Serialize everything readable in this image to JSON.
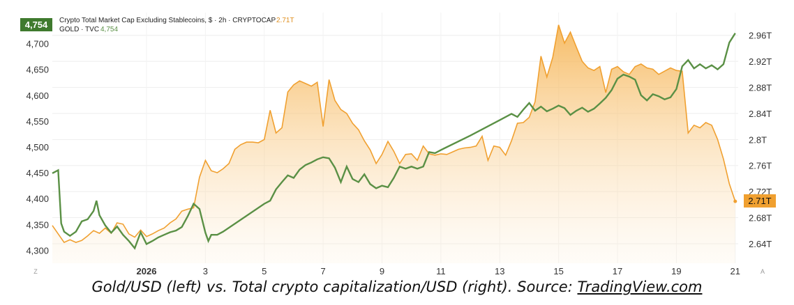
{
  "chart_data": {
    "type": "line",
    "legend": {
      "crypto_label": "Crypto Total Market Cap Excluding Stablecoins, $ · 2h · CRYPTOCAP",
      "crypto_value": "2.71T",
      "gold_label": "GOLD · TVC",
      "gold_value": "4,754"
    },
    "gold_badge": "4,754",
    "crypto_badge": "2.71T",
    "x_ticks": [
      "2026",
      "3",
      "5",
      "7",
      "9",
      "11",
      "13",
      "15",
      "17",
      "19",
      "21"
    ],
    "x_tick_pos": [
      4,
      6,
      8,
      10,
      12,
      14,
      16,
      18,
      20,
      22,
      24
    ],
    "left_axis": {
      "ticks": [
        "4,300",
        "4,350",
        "4,400",
        "4,450",
        "4,500",
        "4,550",
        "4,600",
        "4,650",
        "4,700"
      ],
      "tick_values": [
        4300,
        4350,
        4400,
        4450,
        4500,
        4550,
        4600,
        4650,
        4700
      ],
      "ylim": [
        4275,
        4760
      ]
    },
    "right_axis": {
      "ticks": [
        "2.64T",
        "2.68T",
        "2.72T",
        "2.76T",
        "2.8T",
        "2.84T",
        "2.88T",
        "2.92T",
        "2.96T"
      ],
      "tick_values": [
        2.64,
        2.68,
        2.72,
        2.76,
        2.8,
        2.84,
        2.88,
        2.92,
        2.96
      ],
      "ylim": [
        2.61,
        2.995
      ]
    },
    "xlim": [
      0.8,
      24.1
    ],
    "series": [
      {
        "name": "Crypto Total Market Cap Excluding Stablecoins",
        "axis": "right",
        "color": "#f0a030",
        "points": [
          [
            0.8,
            2.668
          ],
          [
            1.0,
            2.655
          ],
          [
            1.2,
            2.642
          ],
          [
            1.4,
            2.646
          ],
          [
            1.6,
            2.642
          ],
          [
            1.8,
            2.645
          ],
          [
            2.0,
            2.652
          ],
          [
            2.2,
            2.66
          ],
          [
            2.4,
            2.656
          ],
          [
            2.6,
            2.664
          ],
          [
            2.8,
            2.656
          ],
          [
            3.0,
            2.672
          ],
          [
            3.2,
            2.67
          ],
          [
            3.4,
            2.655
          ],
          [
            3.6,
            2.65
          ],
          [
            3.8,
            2.661
          ],
          [
            4.0,
            2.651
          ],
          [
            4.2,
            2.655
          ],
          [
            4.4,
            2.66
          ],
          [
            4.6,
            2.664
          ],
          [
            4.8,
            2.672
          ],
          [
            5.0,
            2.678
          ],
          [
            5.2,
            2.69
          ],
          [
            5.4,
            2.693
          ],
          [
            5.6,
            2.695
          ],
          [
            5.8,
            2.742
          ],
          [
            6.0,
            2.768
          ],
          [
            6.2,
            2.752
          ],
          [
            6.4,
            2.749
          ],
          [
            6.6,
            2.755
          ],
          [
            6.8,
            2.763
          ],
          [
            7.0,
            2.785
          ],
          [
            7.2,
            2.792
          ],
          [
            7.4,
            2.796
          ],
          [
            7.6,
            2.796
          ],
          [
            7.8,
            2.795
          ],
          [
            8.0,
            2.8
          ],
          [
            8.2,
            2.845
          ],
          [
            8.4,
            2.81
          ],
          [
            8.6,
            2.818
          ],
          [
            8.8,
            2.873
          ],
          [
            9.0,
            2.884
          ],
          [
            9.2,
            2.89
          ],
          [
            9.4,
            2.886
          ],
          [
            9.6,
            2.882
          ],
          [
            9.8,
            2.888
          ],
          [
            10.0,
            2.82
          ],
          [
            10.2,
            2.892
          ],
          [
            10.4,
            2.86
          ],
          [
            10.6,
            2.846
          ],
          [
            10.8,
            2.84
          ],
          [
            11.0,
            2.825
          ],
          [
            11.2,
            2.815
          ],
          [
            11.4,
            2.798
          ],
          [
            11.6,
            2.784
          ],
          [
            11.8,
            2.763
          ],
          [
            12.0,
            2.777
          ],
          [
            12.2,
            2.797
          ],
          [
            12.4,
            2.782
          ],
          [
            12.6,
            2.763
          ],
          [
            12.8,
            2.777
          ],
          [
            13.0,
            2.778
          ],
          [
            13.2,
            2.768
          ],
          [
            13.4,
            2.79
          ],
          [
            13.6,
            2.778
          ],
          [
            13.8,
            2.776
          ],
          [
            14.0,
            2.778
          ],
          [
            14.2,
            2.777
          ],
          [
            14.4,
            2.781
          ],
          [
            14.6,
            2.785
          ],
          [
            14.8,
            2.787
          ],
          [
            15.0,
            2.788
          ],
          [
            15.2,
            2.79
          ],
          [
            15.4,
            2.805
          ],
          [
            15.6,
            2.768
          ],
          [
            15.8,
            2.79
          ],
          [
            16.0,
            2.788
          ],
          [
            16.2,
            2.776
          ],
          [
            16.4,
            2.798
          ],
          [
            16.6,
            2.825
          ],
          [
            16.8,
            2.826
          ],
          [
            17.0,
            2.834
          ],
          [
            17.2,
            2.858
          ],
          [
            17.4,
            2.928
          ],
          [
            17.6,
            2.896
          ],
          [
            17.8,
            2.926
          ],
          [
            18.0,
            2.976
          ],
          [
            18.2,
            2.948
          ],
          [
            18.4,
            2.965
          ],
          [
            18.6,
            2.942
          ],
          [
            18.8,
            2.92
          ],
          [
            19.0,
            2.91
          ],
          [
            19.2,
            2.906
          ],
          [
            19.4,
            2.912
          ],
          [
            19.6,
            2.872
          ],
          [
            19.8,
            2.908
          ],
          [
            20.0,
            2.912
          ],
          [
            20.2,
            2.904
          ],
          [
            20.4,
            2.9
          ],
          [
            20.6,
            2.912
          ],
          [
            20.8,
            2.916
          ],
          [
            21.0,
            2.91
          ],
          [
            21.2,
            2.908
          ],
          [
            21.4,
            2.9
          ],
          [
            21.6,
            2.905
          ],
          [
            21.8,
            2.91
          ],
          [
            22.0,
            2.906
          ],
          [
            22.2,
            2.905
          ],
          [
            22.4,
            2.81
          ],
          [
            22.6,
            2.822
          ],
          [
            22.8,
            2.818
          ],
          [
            23.0,
            2.826
          ],
          [
            23.2,
            2.822
          ],
          [
            23.4,
            2.8
          ],
          [
            23.6,
            2.77
          ],
          [
            23.8,
            2.732
          ],
          [
            24.0,
            2.705
          ]
        ]
      },
      {
        "name": "GOLD",
        "axis": "left",
        "color": "#5a9045",
        "points": [
          [
            0.8,
            4449
          ],
          [
            1.0,
            4455
          ],
          [
            1.1,
            4352
          ],
          [
            1.2,
            4336
          ],
          [
            1.4,
            4328
          ],
          [
            1.6,
            4336
          ],
          [
            1.8,
            4356
          ],
          [
            2.0,
            4360
          ],
          [
            2.2,
            4376
          ],
          [
            2.3,
            4396
          ],
          [
            2.4,
            4368
          ],
          [
            2.6,
            4348
          ],
          [
            2.8,
            4334
          ],
          [
            3.0,
            4346
          ],
          [
            3.2,
            4330
          ],
          [
            3.4,
            4318
          ],
          [
            3.6,
            4304
          ],
          [
            3.8,
            4335
          ],
          [
            4.0,
            4312
          ],
          [
            4.2,
            4318
          ],
          [
            4.4,
            4325
          ],
          [
            4.6,
            4330
          ],
          [
            4.8,
            4335
          ],
          [
            5.0,
            4338
          ],
          [
            5.2,
            4345
          ],
          [
            5.4,
            4366
          ],
          [
            5.6,
            4390
          ],
          [
            5.8,
            4380
          ],
          [
            6.0,
            4334
          ],
          [
            6.1,
            4318
          ],
          [
            6.2,
            4330
          ],
          [
            6.4,
            4330
          ],
          [
            6.6,
            4336
          ],
          [
            8.0,
            4390
          ],
          [
            8.2,
            4396
          ],
          [
            8.4,
            4418
          ],
          [
            8.6,
            4432
          ],
          [
            8.8,
            4445
          ],
          [
            9.0,
            4440
          ],
          [
            9.2,
            4456
          ],
          [
            9.4,
            4465
          ],
          [
            9.6,
            4470
          ],
          [
            9.8,
            4476
          ],
          [
            10.0,
            4480
          ],
          [
            10.2,
            4478
          ],
          [
            10.4,
            4460
          ],
          [
            10.6,
            4432
          ],
          [
            10.8,
            4462
          ],
          [
            11.0,
            4438
          ],
          [
            11.2,
            4432
          ],
          [
            11.4,
            4447
          ],
          [
            11.6,
            4428
          ],
          [
            11.8,
            4420
          ],
          [
            12.0,
            4425
          ],
          [
            12.2,
            4422
          ],
          [
            12.4,
            4440
          ],
          [
            12.6,
            4462
          ],
          [
            12.8,
            4458
          ],
          [
            13.0,
            4462
          ],
          [
            13.2,
            4458
          ],
          [
            13.4,
            4462
          ],
          [
            13.6,
            4490
          ],
          [
            13.8,
            4488
          ],
          [
            14.0,
            4494
          ],
          [
            15.0,
            4522
          ],
          [
            16.0,
            4552
          ],
          [
            16.4,
            4564
          ],
          [
            16.6,
            4558
          ],
          [
            16.8,
            4572
          ],
          [
            17.0,
            4585
          ],
          [
            17.2,
            4570
          ],
          [
            17.4,
            4578
          ],
          [
            17.6,
            4569
          ],
          [
            17.8,
            4574
          ],
          [
            18.0,
            4580
          ],
          [
            18.2,
            4575
          ],
          [
            18.4,
            4562
          ],
          [
            18.6,
            4570
          ],
          [
            18.8,
            4576
          ],
          [
            19.0,
            4568
          ],
          [
            19.2,
            4574
          ],
          [
            19.4,
            4584
          ],
          [
            19.6,
            4595
          ],
          [
            19.8,
            4610
          ],
          [
            20.0,
            4632
          ],
          [
            20.2,
            4640
          ],
          [
            20.4,
            4636
          ],
          [
            20.6,
            4630
          ],
          [
            20.8,
            4600
          ],
          [
            21.0,
            4590
          ],
          [
            21.2,
            4602
          ],
          [
            21.4,
            4598
          ],
          [
            21.6,
            4592
          ],
          [
            21.8,
            4596
          ],
          [
            22.0,
            4612
          ],
          [
            22.2,
            4656
          ],
          [
            22.4,
            4668
          ],
          [
            22.6,
            4652
          ],
          [
            22.8,
            4660
          ],
          [
            23.0,
            4652
          ],
          [
            23.2,
            4658
          ],
          [
            23.4,
            4650
          ],
          [
            23.6,
            4660
          ],
          [
            23.8,
            4702
          ],
          [
            24.0,
            4720
          ]
        ]
      }
    ]
  },
  "caption": {
    "prefix": "Gold/USD (left) vs. Total crypto capitalization/USD (right). Source: ",
    "link": "TradingView.com"
  },
  "corner_marks": {
    "left": "Z",
    "right": "A"
  },
  "colors": {
    "crypto_line": "#f0a030",
    "gold_line": "#5a9045",
    "crypto_badge": "#f0a030",
    "gold_badge": "#3f7a2e"
  }
}
